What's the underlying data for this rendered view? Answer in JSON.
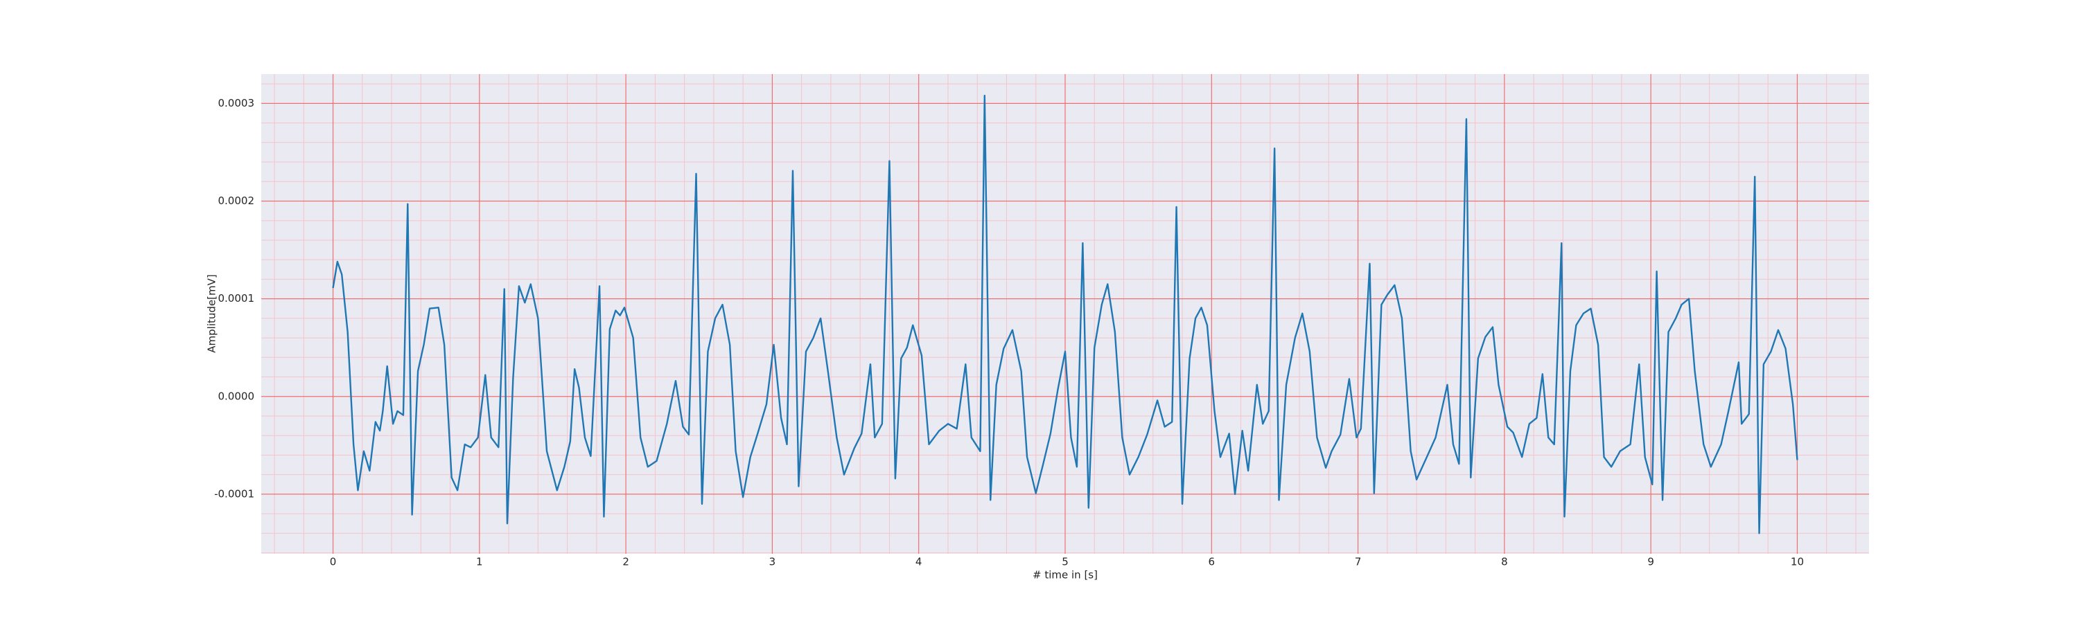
{
  "chart_data": {
    "type": "line",
    "xlabel": "# time in [s]",
    "ylabel": "Amplitude[mV]",
    "xlim": [
      -0.49,
      10.49
    ],
    "ylim": [
      -0.000161,
      0.00033
    ],
    "xticks": [
      0,
      1,
      2,
      3,
      4,
      5,
      6,
      7,
      8,
      9,
      10
    ],
    "yticks": [
      -0.0001,
      {
        "value": 0,
        "label": "0.0000"
      },
      0.0001,
      0.0002,
      0.0003
    ],
    "xticks_minor": [
      -0.4,
      -0.2,
      0.2,
      0.4,
      0.6,
      0.8,
      1.2,
      1.4,
      1.6,
      1.8,
      2.2,
      2.4,
      2.6,
      2.8,
      3.2,
      3.4,
      3.6,
      3.8,
      4.2,
      4.4,
      4.6,
      4.8,
      5.2,
      5.4,
      5.6,
      5.8,
      6.2,
      6.4,
      6.6,
      6.8,
      7.2,
      7.4,
      7.6,
      7.8,
      8.2,
      8.4,
      8.6,
      8.8,
      9.2,
      9.4,
      9.6,
      9.8,
      10.2,
      10.4
    ],
    "yticks_minor": [
      -0.00016,
      -0.00014,
      -0.00012,
      -8e-05,
      -6e-05,
      -4e-05,
      -2e-05,
      2e-05,
      4e-05,
      6e-05,
      8e-05,
      0.00012,
      0.00014,
      0.00016,
      0.00018,
      0.00022,
      0.00024,
      0.00026,
      0.00028,
      0.00032
    ],
    "grid": true,
    "background": "#eaeaf2",
    "grid_color": "#f07070",
    "minor_grid_color": "#f4c4cc",
    "color": "#1f77b4",
    "x": [
      0,
      0.03,
      0.06,
      0.1,
      0.14,
      0.17,
      0.21,
      0.25,
      0.29,
      0.32,
      0.34,
      0.37,
      0.41,
      0.44,
      0.48,
      0.51,
      0.54,
      0.58,
      0.62,
      0.66,
      0.72,
      0.76,
      0.81,
      0.85,
      0.9,
      0.94,
      0.99,
      1.04,
      1.08,
      1.13,
      1.17,
      1.19,
      1.23,
      1.27,
      1.31,
      1.35,
      1.4,
      1.46,
      1.53,
      1.58,
      1.62,
      1.65,
      1.68,
      1.72,
      1.76,
      1.82,
      1.85,
      1.89,
      1.93,
      1.96,
      1.99,
      2.05,
      2.1,
      2.15,
      2.21,
      2.28,
      2.34,
      2.39,
      2.43,
      2.48,
      2.52,
      2.56,
      2.61,
      2.66,
      2.71,
      2.75,
      2.8,
      2.85,
      2.9,
      2.96,
      3.01,
      3.06,
      3.1,
      3.14,
      3.18,
      3.23,
      3.28,
      3.33,
      3.38,
      3.44,
      3.49,
      3.56,
      3.61,
      3.67,
      3.7,
      3.75,
      3.8,
      3.84,
      3.88,
      3.92,
      3.96,
      4.02,
      4.07,
      4.14,
      4.2,
      4.26,
      4.32,
      4.36,
      4.42,
      4.45,
      4.49,
      4.53,
      4.58,
      4.64,
      4.7,
      4.74,
      4.8,
      4.85,
      4.9,
      4.95,
      5.0,
      5.04,
      5.08,
      5.12,
      5.16,
      5.2,
      5.25,
      5.29,
      5.34,
      5.39,
      5.44,
      5.5,
      5.56,
      5.63,
      5.68,
      5.73,
      5.76,
      5.8,
      5.85,
      5.89,
      5.93,
      5.97,
      6.02,
      6.06,
      6.12,
      6.16,
      6.21,
      6.25,
      6.31,
      6.35,
      6.39,
      6.43,
      6.46,
      6.51,
      6.57,
      6.62,
      6.67,
      6.72,
      6.78,
      6.82,
      6.88,
      6.94,
      6.99,
      7.02,
      7.08,
      7.11,
      7.16,
      7.2,
      7.25,
      7.3,
      7.36,
      7.4,
      7.47,
      7.53,
      7.61,
      7.65,
      7.69,
      7.74,
      7.77,
      7.82,
      7.87,
      7.92,
      7.96,
      8.02,
      8.06,
      8.12,
      8.17,
      8.22,
      8.26,
      8.3,
      8.34,
      8.39,
      8.41,
      8.45,
      8.49,
      8.54,
      8.59,
      8.64,
      8.68,
      8.73,
      8.79,
      8.86,
      8.92,
      8.96,
      9.01,
      9.04,
      9.08,
      9.12,
      9.17,
      9.21,
      9.26,
      9.3,
      9.36,
      9.41,
      9.48,
      9.53,
      9.6,
      9.62,
      9.67,
      9.71,
      9.74,
      9.77,
      9.82,
      9.87,
      9.92,
      9.97,
      10.0
    ],
    "values": [
      0.000111,
      0.000138,
      0.000125,
      6.6e-05,
      -4.9e-05,
      -9.6e-05,
      -5.6e-05,
      -7.6e-05,
      -2.6e-05,
      -3.5e-05,
      -1.5e-05,
      3.1e-05,
      -2.8e-05,
      -1.5e-05,
      -1.9e-05,
      0.000197,
      -0.000121,
      2.6e-05,
      5.3e-05,
      9e-05,
      9.1e-05,
      5.3e-05,
      -8.3e-05,
      -9.6e-05,
      -4.9e-05,
      -5.2e-05,
      -4.2e-05,
      2.2e-05,
      -4.2e-05,
      -5.2e-05,
      0.00011,
      -0.00013,
      1.9e-05,
      0.000113,
      9.6e-05,
      0.000115,
      8e-05,
      -5.6e-05,
      -9.6e-05,
      -7.2e-05,
      -4.6e-05,
      2.8e-05,
      9e-06,
      -4.2e-05,
      -6.1e-05,
      0.000113,
      -0.000123,
      6.9e-05,
      8.8e-05,
      8.3e-05,
      9.1e-05,
      6e-05,
      -4.2e-05,
      -7.2e-05,
      -6.6e-05,
      -2.8e-05,
      1.6e-05,
      -3.1e-05,
      -3.9e-05,
      0.000228,
      -0.00011,
      4.6e-05,
      8e-05,
      9.4e-05,
      5.3e-05,
      -5.6e-05,
      -0.000103,
      -6.2e-05,
      -3.8e-05,
      -8e-06,
      5.3e-05,
      -2.2e-05,
      -4.9e-05,
      0.000231,
      -9.2e-05,
      4.6e-05,
      6e-05,
      8e-05,
      2.6e-05,
      -4.2e-05,
      -8e-05,
      -5.3e-05,
      -3.8e-05,
      3.3e-05,
      -4.2e-05,
      -2.8e-05,
      0.000241,
      -8.4e-05,
      3.9e-05,
      5e-05,
      7.3e-05,
      4.2e-05,
      -4.9e-05,
      -3.5e-05,
      -2.8e-05,
      -3.3e-05,
      3.3e-05,
      -4.2e-05,
      -5.6e-05,
      0.000308,
      -0.000106,
      1.2e-05,
      4.9e-05,
      6.8e-05,
      2.6e-05,
      -6.2e-05,
      -9.9e-05,
      -6.9e-05,
      -3.8e-05,
      7e-06,
      4.6e-05,
      -4.2e-05,
      -7.2e-05,
      0.000157,
      -0.000114,
      5e-05,
      9.4e-05,
      0.000115,
      6.6e-05,
      -4.2e-05,
      -8e-05,
      -6.2e-05,
      -3.9e-05,
      -4e-06,
      -3.1e-05,
      -2.6e-05,
      0.000194,
      -0.00011,
      3.9e-05,
      8e-05,
      9.1e-05,
      7.3e-05,
      -1.5e-05,
      -6.2e-05,
      -3.8e-05,
      -0.0001,
      -3.5e-05,
      -7.6e-05,
      1.2e-05,
      -2.8e-05,
      -1.5e-05,
      0.000254,
      -0.000106,
      1.2e-05,
      6e-05,
      8.5e-05,
      4.6e-05,
      -4.2e-05,
      -7.3e-05,
      -5.6e-05,
      -3.9e-05,
      1.8e-05,
      -4.2e-05,
      -3.3e-05,
      0.000136,
      -9.9e-05,
      9.4e-05,
      0.000104,
      0.000114,
      8e-05,
      -5.6e-05,
      -8.5e-05,
      -6.2e-05,
      -4.2e-05,
      1.2e-05,
      -4.9e-05,
      -6.9e-05,
      0.000284,
      -8.3e-05,
      3.9e-05,
      6.1e-05,
      7.1e-05,
      1.2e-05,
      -3.1e-05,
      -3.7e-05,
      -6.2e-05,
      -2.8e-05,
      -2.2e-05,
      2.3e-05,
      -4.2e-05,
      -4.9e-05,
      0.000157,
      -0.000123,
      2.6e-05,
      7.3e-05,
      8.5e-05,
      9e-05,
      5.3e-05,
      -6.2e-05,
      -7.2e-05,
      -5.6e-05,
      -4.9e-05,
      3.3e-05,
      -6.2e-05,
      -9e-05,
      0.000128,
      -0.000106,
      6.6e-05,
      8e-05,
      9.4e-05,
      0.0001,
      2.6e-05,
      -4.9e-05,
      -7.2e-05,
      -4.9e-05,
      -1.5e-05,
      3.5e-05,
      -2.8e-05,
      -1.8e-05,
      0.000225,
      -0.00014,
      3.3e-05,
      4.6e-05,
      6.8e-05,
      4.9e-05,
      -8e-06,
      -6.5e-05
    ]
  }
}
